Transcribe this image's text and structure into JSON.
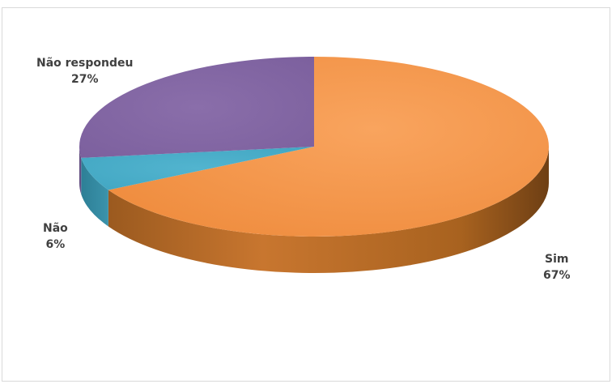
{
  "chart_data": {
    "type": "pie",
    "title": "",
    "categories": [
      "Sim",
      "Não",
      "Não respondeu"
    ],
    "values": [
      67,
      6,
      27
    ],
    "value_labels": [
      "67%",
      "6%",
      "27%"
    ],
    "colors": [
      "#f79646",
      "#4bacc6",
      "#8064a2"
    ],
    "style": "3d",
    "legend": "none"
  }
}
